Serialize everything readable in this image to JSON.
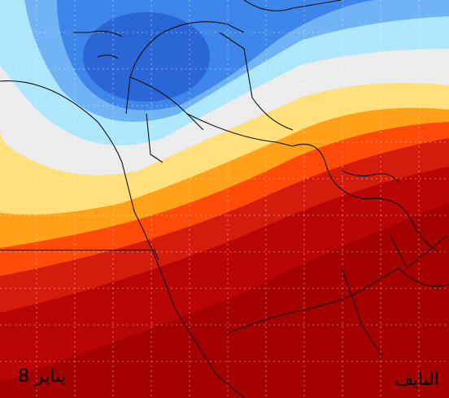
{
  "labels": {
    "date": "8 يناير",
    "source": "النايف"
  }
}
